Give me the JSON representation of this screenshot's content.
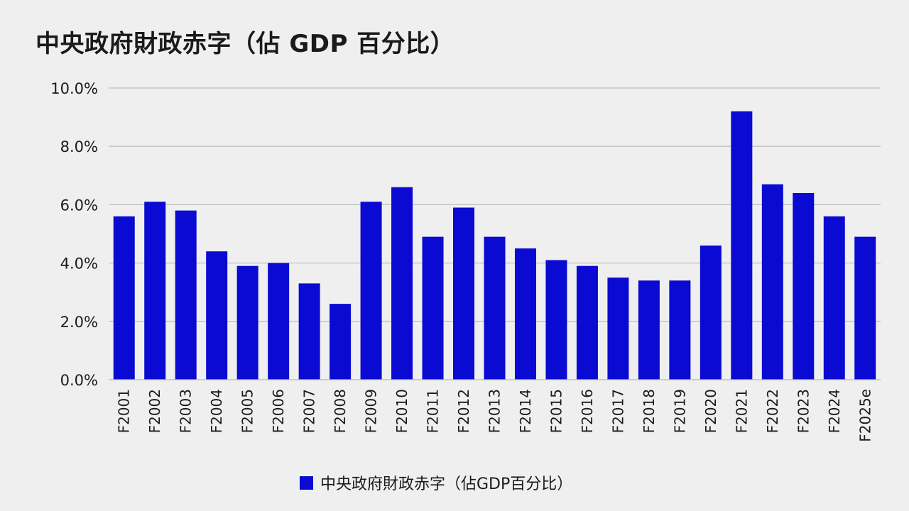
{
  "chart_data": {
    "type": "bar",
    "title": "中央政府財政赤字（佔 GDP 百分比）",
    "xlabel": "",
    "ylabel": "",
    "categories": [
      "F2001",
      "F2002",
      "F2003",
      "F2004",
      "F2005",
      "F2006",
      "F2007",
      "F2008",
      "F2009",
      "F2010",
      "F2011",
      "F2012",
      "F2013",
      "F2014",
      "F2015",
      "F2016",
      "F2017",
      "F2018",
      "F2019",
      "F2020",
      "F2021",
      "F2022",
      "F2023",
      "F2024",
      "F2025e"
    ],
    "series": [
      {
        "name": "中央政府財政赤字（佔GDP百分比）",
        "color": "#0a0ad2",
        "values": [
          5.6,
          6.1,
          5.8,
          4.4,
          3.9,
          4.0,
          3.3,
          2.6,
          6.1,
          6.6,
          4.9,
          5.9,
          4.9,
          4.5,
          4.1,
          3.9,
          3.5,
          3.4,
          3.4,
          4.6,
          9.2,
          6.7,
          6.4,
          5.6,
          4.9
        ]
      }
    ],
    "ylim": [
      0,
      10
    ],
    "yticks": [
      0,
      2,
      4,
      6,
      8,
      10
    ],
    "ytick_labels": [
      "0.0%",
      "2.0%",
      "4.0%",
      "6.0%",
      "8.0%",
      "10.0%"
    ],
    "grid": true,
    "legend_position": "bottom-center",
    "colors": {
      "bar": "#0a0ad2",
      "grid": "#bfbfbf",
      "background": "#efefef"
    }
  }
}
